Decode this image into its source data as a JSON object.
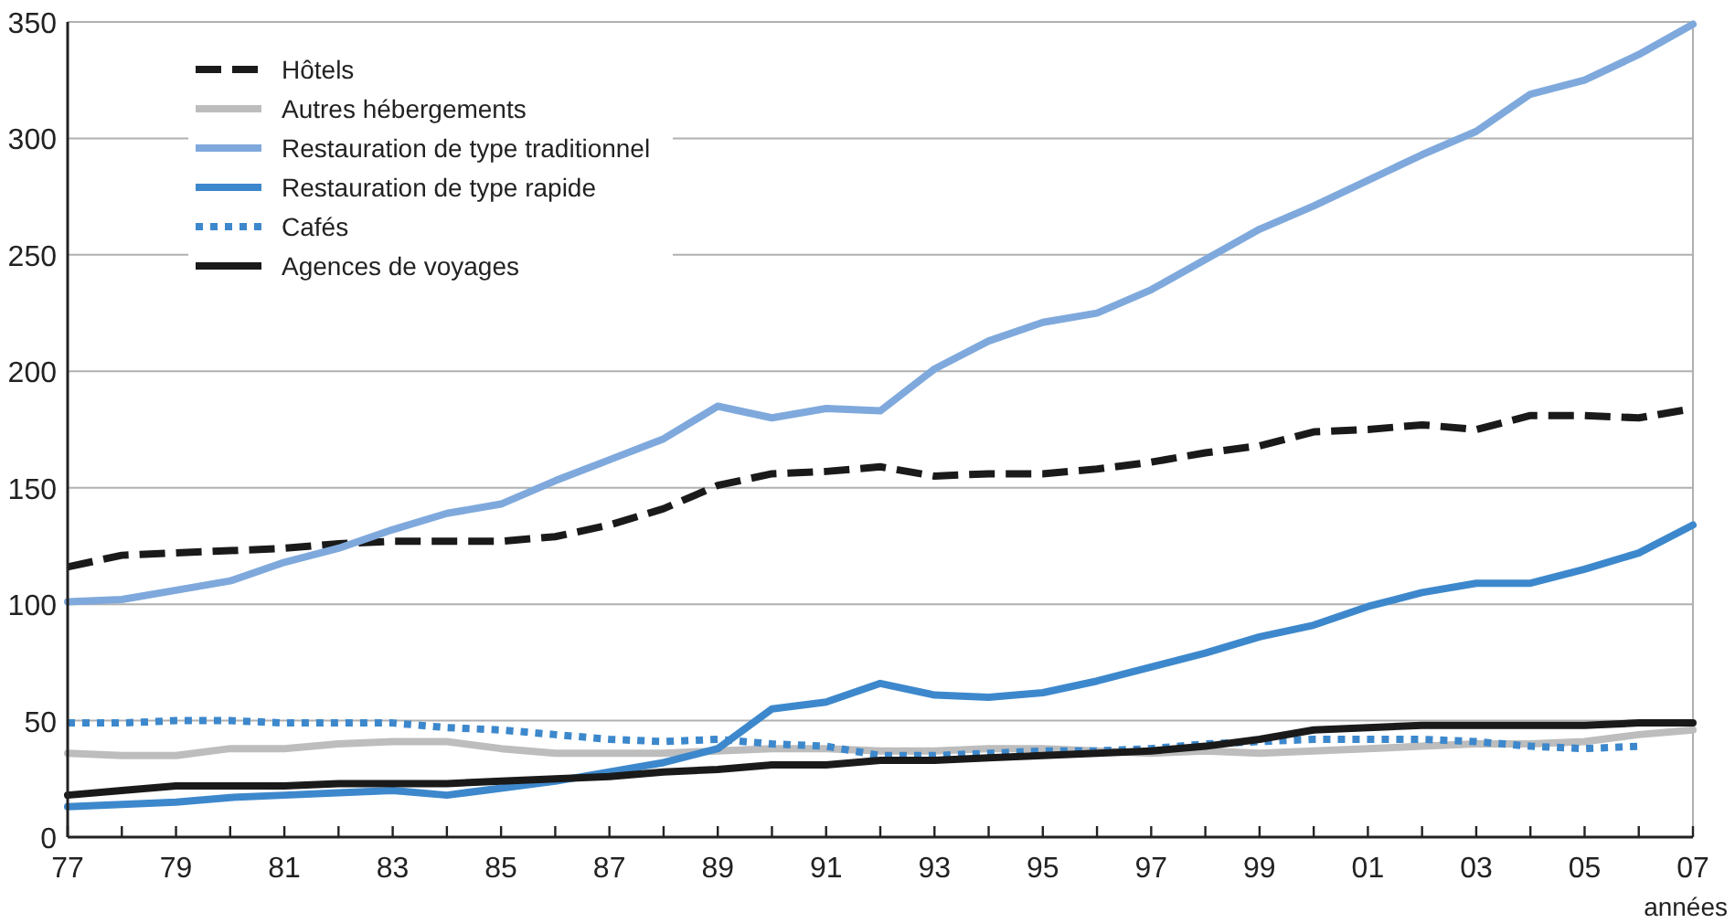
{
  "chart_data": {
    "type": "line",
    "xlabel": "années",
    "x": [
      1977,
      1978,
      1979,
      1980,
      1981,
      1982,
      1983,
      1984,
      1985,
      1986,
      1987,
      1988,
      1989,
      1990,
      1991,
      1992,
      1993,
      1994,
      1995,
      1996,
      1997,
      1998,
      1999,
      2000,
      2001,
      2002,
      2003,
      2004,
      2005,
      2006,
      2007
    ],
    "series": [
      {
        "name": "Hôtels",
        "color": "#1a1a1a",
        "line_style": "dashed",
        "values": [
          116,
          121,
          122,
          123,
          124,
          126,
          127,
          127,
          127,
          129,
          134,
          141,
          151,
          156,
          157,
          159,
          155,
          156,
          156,
          158,
          161,
          165,
          168,
          174,
          175,
          177,
          175,
          181,
          181,
          180,
          184
        ]
      },
      {
        "name": "Autres hébergements",
        "color": "#bdbdbd",
        "line_style": "solid",
        "values": [
          36,
          35,
          35,
          38,
          38,
          40,
          41,
          41,
          38,
          36,
          36,
          36,
          37,
          38,
          38,
          37,
          37,
          38,
          38,
          37,
          36,
          37,
          36,
          37,
          38,
          39,
          40,
          40,
          41,
          44,
          46
        ]
      },
      {
        "name": "Restauration de type traditionnel",
        "color": "#7fa9dc",
        "line_style": "solid",
        "values": [
          101,
          102,
          106,
          110,
          118,
          124,
          132,
          139,
          143,
          153,
          162,
          171,
          185,
          180,
          184,
          183,
          201,
          213,
          221,
          225,
          235,
          248,
          261,
          271,
          282,
          293,
          303,
          319,
          325,
          336,
          349
        ]
      },
      {
        "name": "Restauration de type rapide",
        "color": "#3d88cc",
        "line_style": "solid",
        "values": [
          13,
          14,
          15,
          17,
          18,
          19,
          20,
          18,
          21,
          24,
          28,
          32,
          38,
          55,
          58,
          66,
          61,
          60,
          62,
          67,
          73,
          79,
          86,
          91,
          99,
          105,
          109,
          109,
          115,
          122,
          134
        ]
      },
      {
        "name": "Cafés",
        "color": "#3d88cc",
        "line_style": "dotted",
        "values": [
          49,
          49,
          50,
          50,
          49,
          49,
          49,
          47,
          46,
          44,
          42,
          41,
          42,
          40,
          39,
          35,
          35,
          36,
          37,
          37,
          38,
          40,
          41,
          42,
          42,
          42,
          41,
          39,
          38,
          39,
          null
        ]
      },
      {
        "name": "Agences de voyages",
        "color": "#1a1a1a",
        "line_style": "solid",
        "values": [
          18,
          20,
          22,
          22,
          22,
          23,
          23,
          23,
          24,
          25,
          26,
          28,
          29,
          31,
          31,
          33,
          33,
          34,
          35,
          36,
          37,
          39,
          42,
          46,
          47,
          48,
          48,
          48,
          48,
          49,
          49
        ]
      }
    ],
    "xlim": [
      1977,
      2007
    ],
    "xticks": [
      {
        "value": 1977,
        "label": "77"
      },
      {
        "value": 1978,
        "label": null
      },
      {
        "value": 1979,
        "label": "79"
      },
      {
        "value": 1980,
        "label": null
      },
      {
        "value": 1981,
        "label": "81"
      },
      {
        "value": 1982,
        "label": null
      },
      {
        "value": 1983,
        "label": "83"
      },
      {
        "value": 1984,
        "label": null
      },
      {
        "value": 1985,
        "label": "85"
      },
      {
        "value": 1986,
        "label": null
      },
      {
        "value": 1987,
        "label": "87"
      },
      {
        "value": 1988,
        "label": null
      },
      {
        "value": 1989,
        "label": "89"
      },
      {
        "value": 1990,
        "label": null
      },
      {
        "value": 1991,
        "label": "91"
      },
      {
        "value": 1992,
        "label": null
      },
      {
        "value": 1993,
        "label": "93"
      },
      {
        "value": 1994,
        "label": null
      },
      {
        "value": 1995,
        "label": "95"
      },
      {
        "value": 1996,
        "label": null
      },
      {
        "value": 1997,
        "label": "97"
      },
      {
        "value": 1998,
        "label": null
      },
      {
        "value": 1999,
        "label": "99"
      },
      {
        "value": 2000,
        "label": null
      },
      {
        "value": 2001,
        "label": "01"
      },
      {
        "value": 2002,
        "label": null
      },
      {
        "value": 2003,
        "label": "03"
      },
      {
        "value": 2004,
        "label": null
      },
      {
        "value": 2005,
        "label": "05"
      },
      {
        "value": 2006,
        "label": null
      },
      {
        "value": 2007,
        "label": "07"
      }
    ],
    "ylim": [
      0,
      350
    ],
    "yticks": [
      0,
      50,
      100,
      150,
      200,
      250,
      300,
      350
    ],
    "grid": "y",
    "legend": "top left",
    "marker": "none"
  }
}
